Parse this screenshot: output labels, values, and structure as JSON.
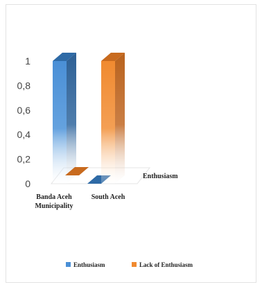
{
  "chart_data": {
    "type": "bar",
    "style": "3d-column-gradient",
    "categories": [
      "Banda Aceh Municipality",
      "South Aceh"
    ],
    "category_lines": [
      [
        "Banda Aceh",
        "Municipality"
      ],
      [
        "South Aceh"
      ]
    ],
    "depth_label": "Enthusiasm",
    "series": [
      {
        "name": "Enthusiasm",
        "values": [
          1,
          0
        ],
        "color": "#4a8fd6",
        "side_color": "#2d5f94",
        "top_color": "#2e6aa6"
      },
      {
        "name": "Lack of Enthusiasm",
        "values": [
          0,
          1
        ],
        "color": "#f08a30",
        "side_color": "#b8621d",
        "top_color": "#c86a1e"
      }
    ],
    "y_ticks": [
      "0",
      "0,2",
      "0,4",
      "0,6",
      "0,8",
      "1"
    ],
    "ylim": [
      0,
      1
    ],
    "grid": false,
    "legend_position": "bottom"
  }
}
